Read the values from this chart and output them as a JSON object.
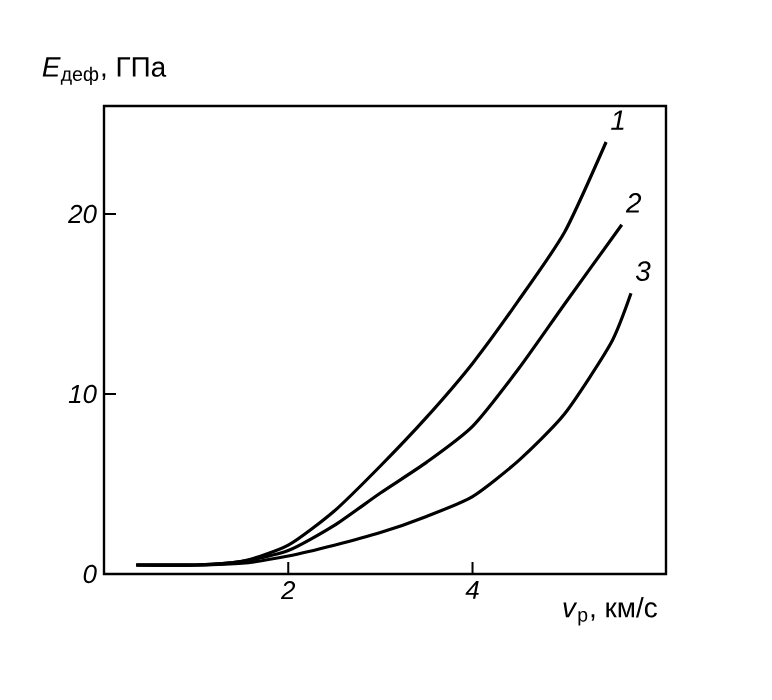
{
  "chart_data": {
    "type": "line",
    "xlabel": "*v*$_{р}$, км/с",
    "ylabel": "*E*$_{деф}$, ГПа",
    "xlim": [
      0,
      6.1
    ],
    "ylim": [
      0,
      26
    ],
    "xticks": [
      2,
      4
    ],
    "yticks": [
      0,
      10,
      20
    ],
    "grid": false,
    "legend": false,
    "marker": "none",
    "line_style": "solid",
    "series": [
      {
        "name": "1",
        "color": "#000000",
        "x": [
          0.35,
          1.0,
          1.5,
          2.0,
          2.5,
          3.0,
          3.5,
          4.0,
          4.5,
          5.0,
          5.45
        ],
        "values": [
          0.5,
          0.5,
          0.7,
          1.6,
          3.5,
          6.0,
          8.7,
          11.7,
          15.2,
          19.0,
          24.0
        ]
      },
      {
        "name": "2",
        "color": "#000000",
        "x": [
          0.35,
          1.0,
          1.5,
          2.0,
          2.5,
          3.0,
          3.5,
          4.0,
          4.5,
          5.0,
          5.62
        ],
        "values": [
          0.5,
          0.5,
          0.7,
          1.3,
          2.7,
          4.5,
          6.2,
          8.2,
          11.4,
          15.0,
          19.4
        ]
      },
      {
        "name": "3",
        "color": "#000000",
        "x": [
          0.35,
          1.0,
          1.5,
          2.0,
          2.5,
          3.0,
          3.5,
          4.0,
          4.5,
          5.0,
          5.5,
          5.72
        ],
        "values": [
          0.5,
          0.5,
          0.6,
          1.0,
          1.6,
          2.3,
          3.2,
          4.3,
          6.3,
          8.9,
          12.8,
          15.6
        ]
      }
    ]
  }
}
